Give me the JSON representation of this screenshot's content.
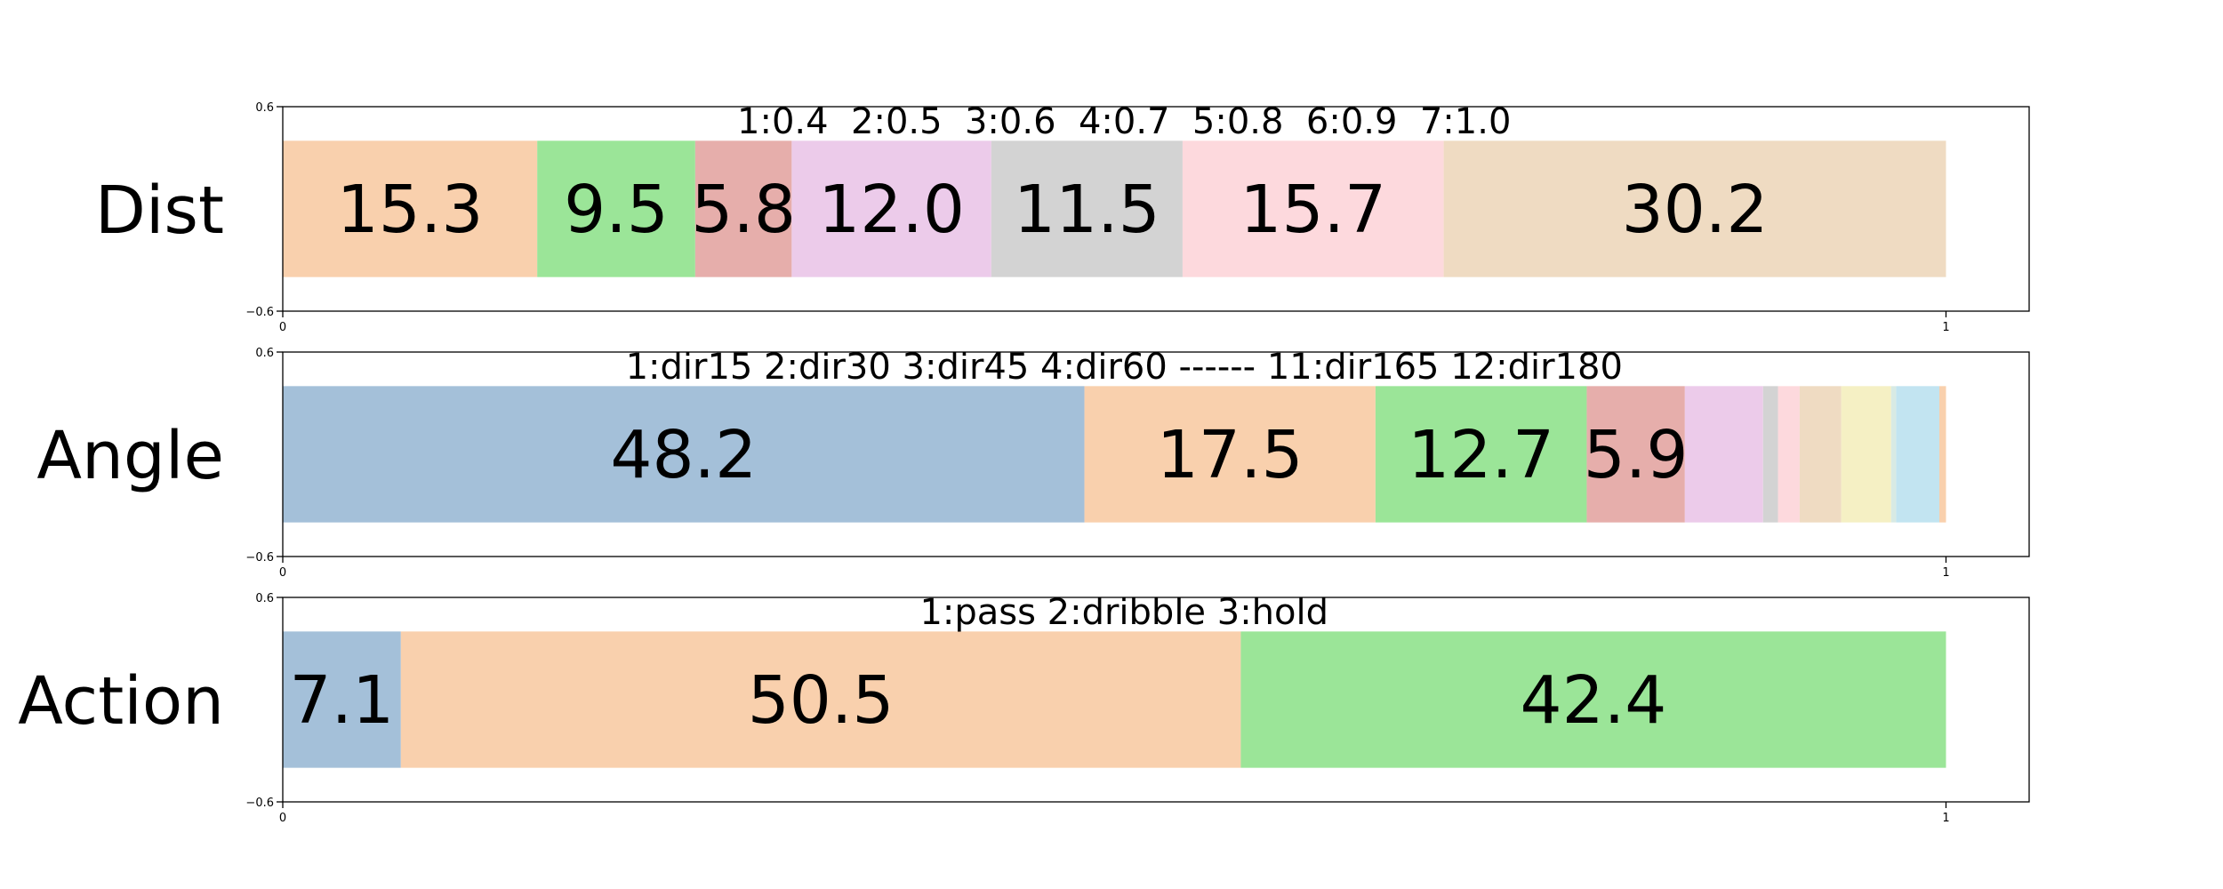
{
  "chart_data": [
    {
      "type": "bar",
      "orientation": "horizontal-stacked",
      "ylabel": "Dist",
      "annotation": "1:0.4  2:0.5  3:0.6  4:0.7  5:0.8  6:0.9  7:1.0",
      "xlim": [
        0,
        1.05
      ],
      "ylim": [
        -0.6,
        0.6
      ],
      "xticks": [
        "0",
        "1"
      ],
      "yticks": [
        "0.6",
        "−0.6"
      ],
      "segments": [
        {
          "value": 15.3,
          "label": "15.3",
          "color": "#f9d0ad"
        },
        {
          "value": 9.5,
          "label": "9.5",
          "color": "#9be598"
        },
        {
          "value": 5.8,
          "label": "5.8",
          "color": "#e6aeab"
        },
        {
          "value": 12.0,
          "label": "12.0",
          "color": "#eccbea"
        },
        {
          "value": 11.5,
          "label": "11.5",
          "color": "#d3d3d3"
        },
        {
          "value": 15.7,
          "label": "15.7",
          "color": "#fdd9dd"
        },
        {
          "value": 30.2,
          "label": "30.2",
          "color": "#efdbc2"
        }
      ]
    },
    {
      "type": "bar",
      "orientation": "horizontal-stacked",
      "ylabel": "Angle",
      "annotation": "1:dir15 2:dir30 3:dir45 4:dir60 ------ 11:dir165 12:dir180",
      "xlim": [
        0,
        1.05
      ],
      "ylim": [
        -0.6,
        0.6
      ],
      "xticks": [
        "0",
        "1"
      ],
      "yticks": [
        "0.6",
        "−0.6"
      ],
      "segments": [
        {
          "value": 48.2,
          "label": "48.2",
          "color": "#a4c0d9"
        },
        {
          "value": 17.5,
          "label": "17.5",
          "color": "#f9d0ad"
        },
        {
          "value": 12.7,
          "label": "12.7",
          "color": "#9be598"
        },
        {
          "value": 5.9,
          "label": "5.9",
          "color": "#e6aeab"
        },
        {
          "value": 4.7,
          "label": "",
          "color": "#eccbea"
        },
        {
          "value": 0.9,
          "label": "",
          "color": "#d3d3d3"
        },
        {
          "value": 1.3,
          "label": "",
          "color": "#fdd9dd"
        },
        {
          "value": 2.5,
          "label": "",
          "color": "#efdbc2"
        },
        {
          "value": 3.0,
          "label": "",
          "color": "#f5f0c4"
        },
        {
          "value": 0.3,
          "label": "",
          "color": "#d8eae4"
        },
        {
          "value": 2.6,
          "label": "",
          "color": "#c2e4f1"
        },
        {
          "value": 0.4,
          "label": "",
          "color": "#f9d0ad"
        }
      ]
    },
    {
      "type": "bar",
      "orientation": "horizontal-stacked",
      "ylabel": "Action",
      "annotation": "1:pass 2:dribble 3:hold",
      "xlim": [
        0,
        1.05
      ],
      "ylim": [
        -0.6,
        0.6
      ],
      "xticks": [
        "0",
        "1"
      ],
      "yticks": [
        "0.6",
        "−0.6"
      ],
      "segments": [
        {
          "value": 7.1,
          "label": "7.1",
          "color": "#a4c0d9"
        },
        {
          "value": 50.5,
          "label": "50.5",
          "color": "#f9d0ad"
        },
        {
          "value": 42.4,
          "label": "42.4",
          "color": "#9be598"
        }
      ]
    }
  ]
}
